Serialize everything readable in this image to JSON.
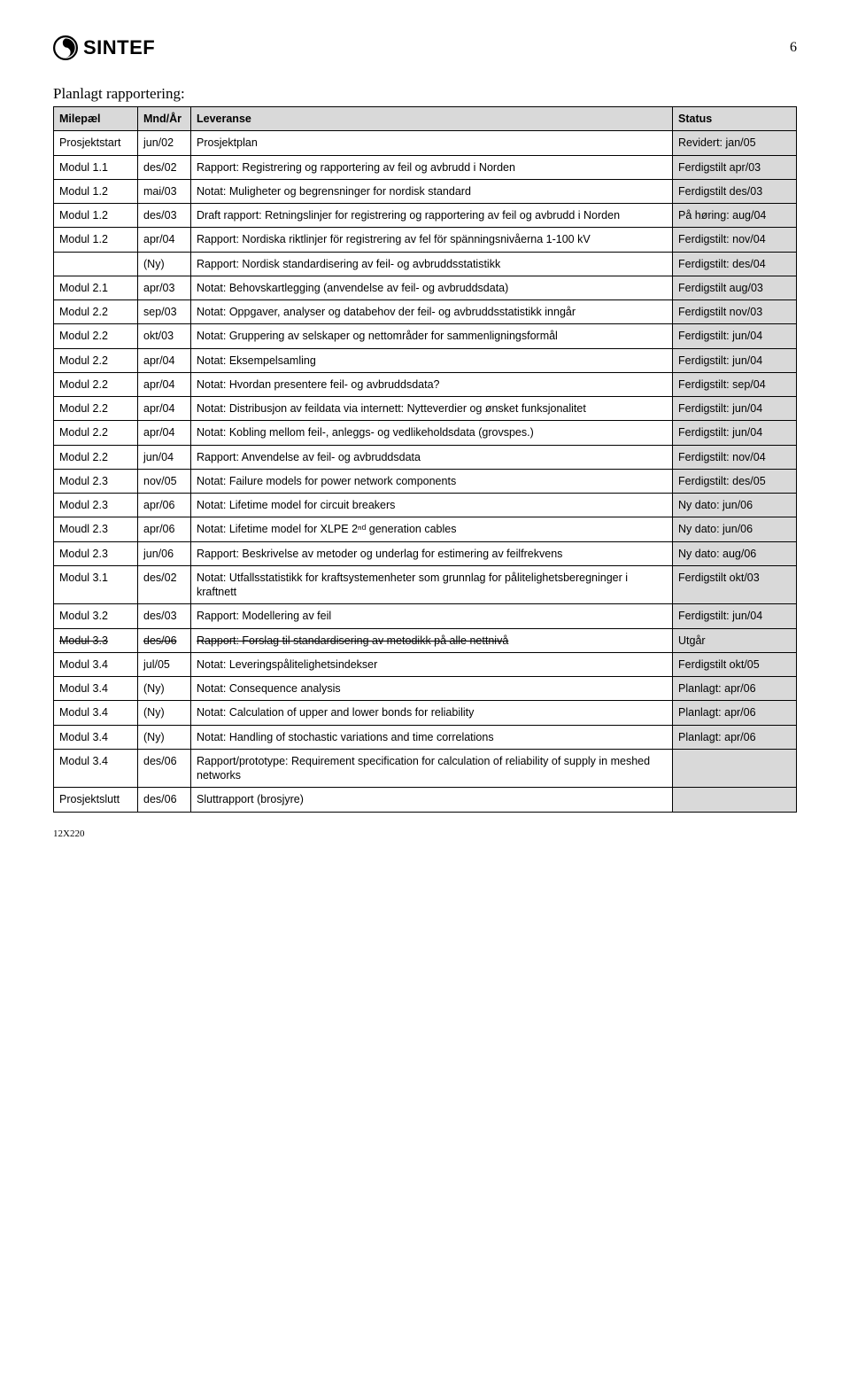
{
  "logo_text": "SINTEF",
  "page_number": "6",
  "section_title": "Planlagt rapportering:",
  "footer": "12X220",
  "columns": [
    "Milepæl",
    "Mnd/År",
    "Leveranse",
    "Status"
  ],
  "rows": [
    {
      "milepael": "Prosjektstart",
      "mndar": "jun/02",
      "leveranse": "Prosjektplan",
      "status": "Revidert: jan/05",
      "strike": false
    },
    {
      "milepael": "Modul 1.1",
      "mndar": "des/02",
      "leveranse": "Rapport: Registrering og rapportering av feil og avbrudd i Norden",
      "status": "Ferdigstilt apr/03",
      "strike": false
    },
    {
      "milepael": "Modul 1.2",
      "mndar": "mai/03",
      "leveranse": "Notat: Muligheter og begrensninger for nordisk standard",
      "status": "Ferdigstilt des/03",
      "strike": false
    },
    {
      "milepael": "Modul 1.2",
      "mndar": "des/03",
      "leveranse": "Draft rapport: Retningslinjer for registrering og rapportering av feil og avbrudd i Norden",
      "status": "På høring: aug/04",
      "strike": false
    },
    {
      "milepael": "Modul 1.2",
      "mndar": "apr/04",
      "leveranse": "Rapport: Nordiska riktlinjer för registrering av fel för spänningsnivåerna 1-100 kV",
      "status": "Ferdigstilt: nov/04",
      "strike": false
    },
    {
      "milepael": "",
      "mndar": "(Ny)",
      "leveranse": "Rapport: Nordisk standardisering av feil- og avbruddsstatistikk",
      "status": "Ferdigstilt: des/04",
      "strike": false
    },
    {
      "milepael": "Modul 2.1",
      "mndar": "apr/03",
      "leveranse": "Notat: Behovskartlegging (anvendelse av feil- og avbruddsdata)",
      "status": "Ferdigstilt aug/03",
      "strike": false
    },
    {
      "milepael": "Modul 2.2",
      "mndar": "sep/03",
      "leveranse": "Notat: Oppgaver, analyser og databehov der feil- og avbruddsstatistikk inngår",
      "status": "Ferdigstilt nov/03",
      "strike": false
    },
    {
      "milepael": "Modul 2.2",
      "mndar": "okt/03",
      "leveranse": "Notat: Gruppering av selskaper og nettområder for sammenligningsformål",
      "status": "Ferdigstilt: jun/04",
      "strike": false
    },
    {
      "milepael": "Modul 2.2",
      "mndar": "apr/04",
      "leveranse": "Notat: Eksempelsamling",
      "status": "Ferdigstilt: jun/04",
      "strike": false
    },
    {
      "milepael": "Modul 2.2",
      "mndar": "apr/04",
      "leveranse": "Notat: Hvordan presentere feil- og avbruddsdata?",
      "status": "Ferdigstilt: sep/04",
      "strike": false
    },
    {
      "milepael": "Modul 2.2",
      "mndar": "apr/04",
      "leveranse": "Notat: Distribusjon av feildata via internett: Nytteverdier og ønsket funksjonalitet",
      "status": "Ferdigstilt: jun/04",
      "strike": false
    },
    {
      "milepael": "Modul 2.2",
      "mndar": "apr/04",
      "leveranse": "Notat: Kobling mellom feil-, anleggs- og vedlikeholdsdata (grovspes.)",
      "status": "Ferdigstilt: jun/04",
      "strike": false
    },
    {
      "milepael": "Modul 2.2",
      "mndar": "jun/04",
      "leveranse": "Rapport: Anvendelse av feil- og avbruddsdata",
      "status": "Ferdigstilt: nov/04",
      "strike": false
    },
    {
      "milepael": "Modul 2.3",
      "mndar": "nov/05",
      "leveranse": "Notat: Failure models for power network components",
      "status": "Ferdigstilt: des/05",
      "strike": false
    },
    {
      "milepael": "Modul 2.3",
      "mndar": "apr/06",
      "leveranse": "Notat: Lifetime model for circuit breakers",
      "status": "Ny dato: jun/06",
      "strike": false
    },
    {
      "milepael": "Moudl 2.3",
      "mndar": "apr/06",
      "leveranse": "Notat: Lifetime model for XLPE 2ⁿᵈ generation cables",
      "status": "Ny dato: jun/06",
      "strike": false
    },
    {
      "milepael": "Modul 2.3",
      "mndar": "jun/06",
      "leveranse": "Rapport: Beskrivelse av metoder og underlag for estimering av feilfrekvens",
      "status": "Ny dato: aug/06",
      "strike": false
    },
    {
      "milepael": "Modul 3.1",
      "mndar": "des/02",
      "leveranse": "Notat: Utfallsstatistikk for kraftsystemenheter som grunnlag for pålitelighetsberegninger i kraftnett",
      "status": "Ferdigstilt okt/03",
      "strike": false
    },
    {
      "milepael": "Modul 3.2",
      "mndar": "des/03",
      "leveranse": "Rapport: Modellering av feil",
      "status": "Ferdigstilt: jun/04",
      "strike": false
    },
    {
      "milepael": "Modul 3.3",
      "mndar": "des/06",
      "leveranse": "Rapport: Forslag til standardisering av metodikk på alle nettnivå",
      "status": "Utgår",
      "strike": true
    },
    {
      "milepael": "Modul 3.4",
      "mndar": "jul/05",
      "leveranse": "Notat: Leveringspålitelighetsindekser",
      "status": "Ferdigstilt okt/05",
      "strike": false
    },
    {
      "milepael": "Modul 3.4",
      "mndar": "(Ny)",
      "leveranse": "Notat: Consequence analysis",
      "status": "Planlagt: apr/06",
      "strike": false
    },
    {
      "milepael": "Modul 3.4",
      "mndar": "(Ny)",
      "leveranse": "Notat: Calculation of upper and lower bonds for reliability",
      "status": "Planlagt: apr/06",
      "strike": false
    },
    {
      "milepael": "Modul 3.4",
      "mndar": "(Ny)",
      "leveranse": "Notat: Handling of stochastic variations and time correlations",
      "status": "Planlagt: apr/06",
      "strike": false
    },
    {
      "milepael": "Modul 3.4",
      "mndar": "des/06",
      "leveranse": "Rapport/prototype: Requirement specification for calculation of reliability of supply in meshed networks",
      "status": "",
      "strike": false
    },
    {
      "milepael": "Prosjektslutt",
      "mndar": "des/06",
      "leveranse": "Sluttrapport (brosjyre)",
      "status": "",
      "strike": false
    }
  ]
}
